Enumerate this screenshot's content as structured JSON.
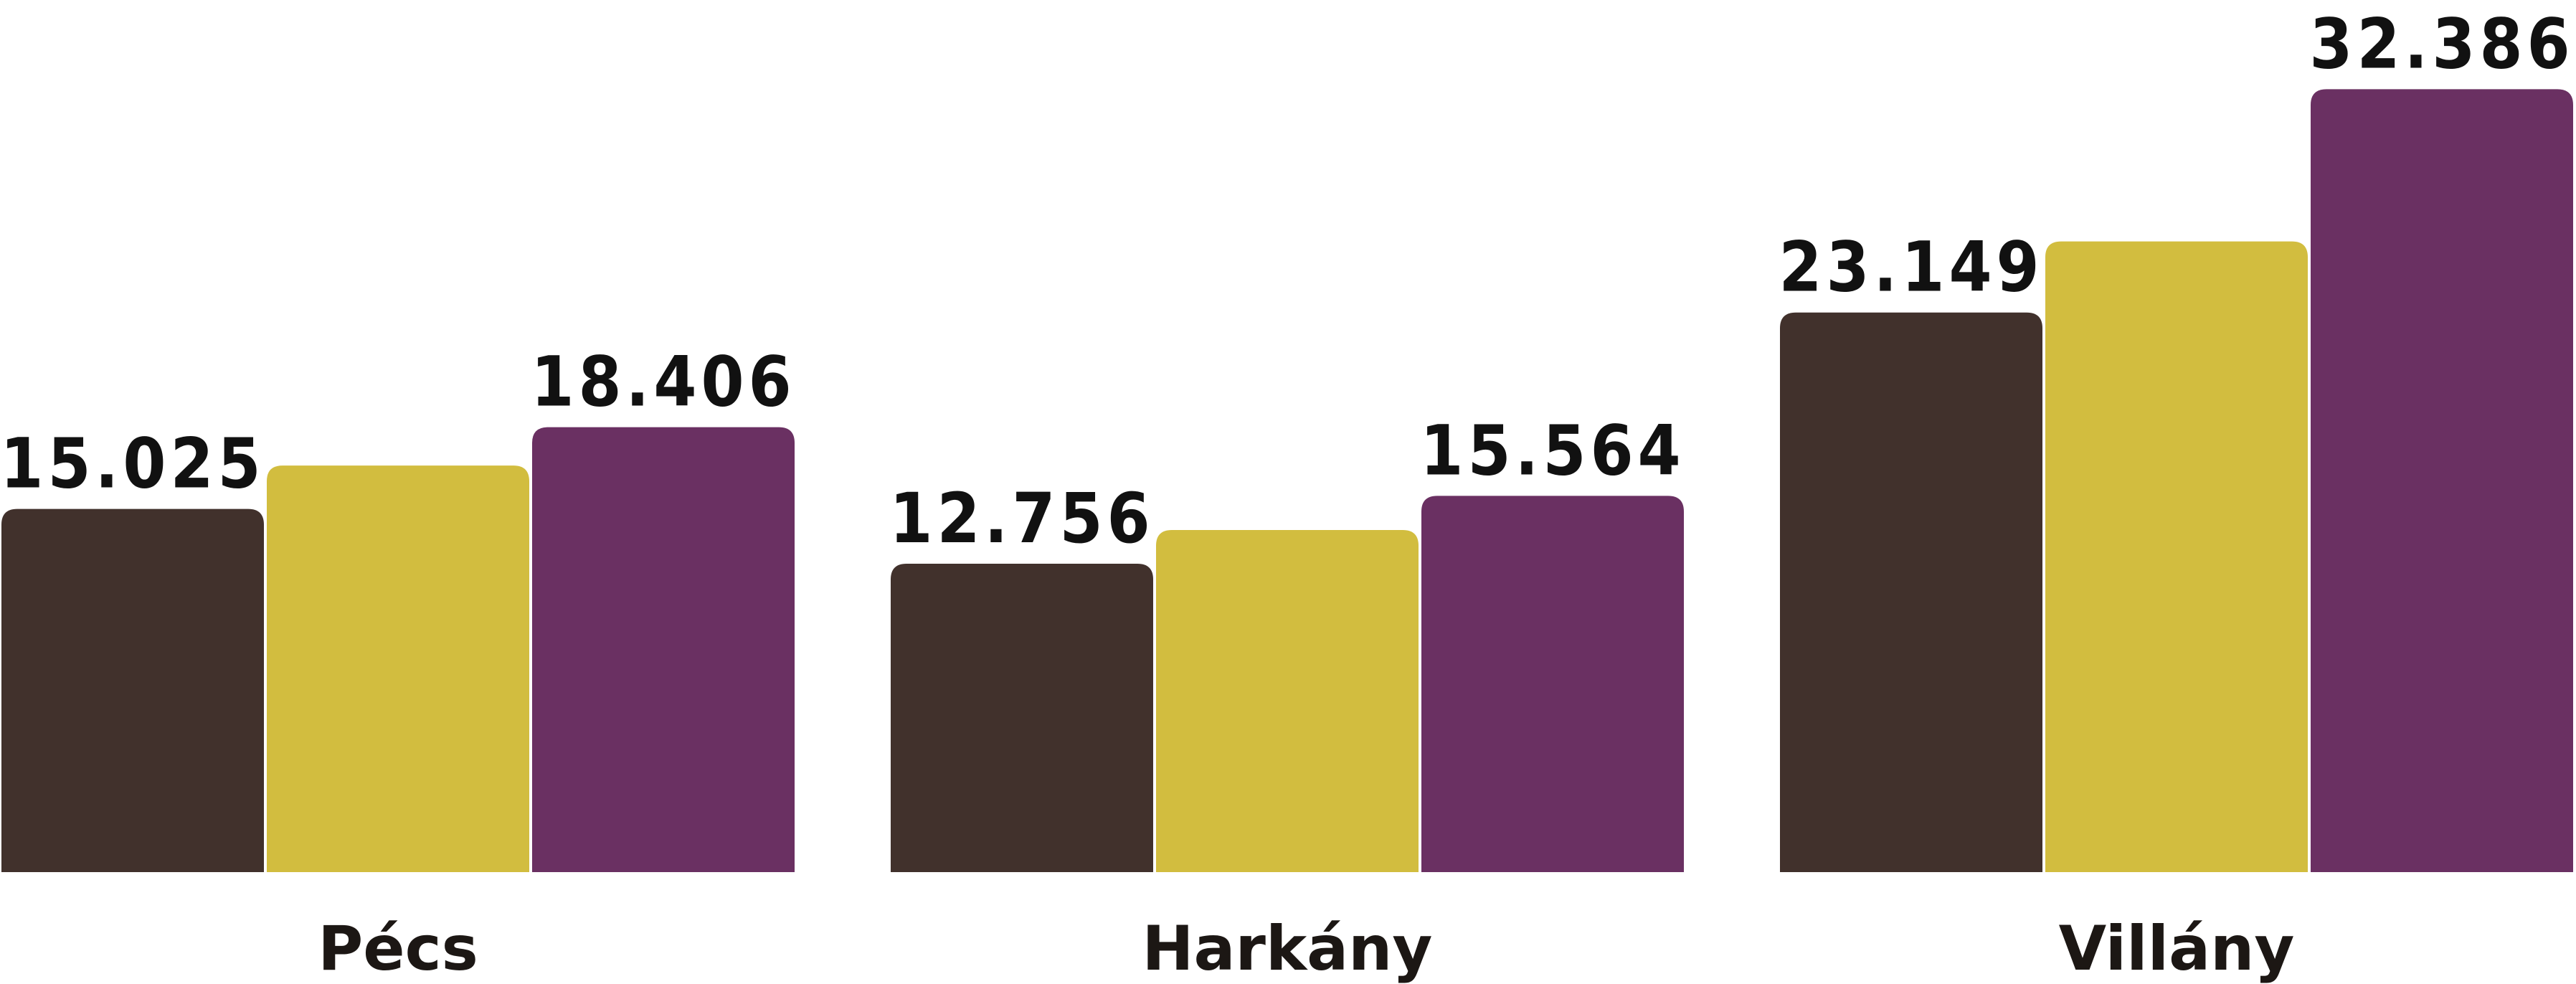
{
  "chart_data": {
    "type": "bar",
    "title": "",
    "xlabel": "",
    "ylabel": "",
    "categories": [
      "Pécs",
      "Harkány",
      "Villány"
    ],
    "series": [
      {
        "color": "#41312c",
        "values": [
          15025,
          12756,
          23149
        ],
        "labels": [
          "15.025",
          "12.756",
          "23.149"
        ]
      },
      {
        "color": "#d2bd3f",
        "values": [
          16820,
          14150,
          26090
        ],
        "labels": [
          "",
          "",
          ""
        ]
      },
      {
        "color": "#6a3062",
        "values": [
          18406,
          15564,
          32386
        ],
        "labels": [
          "18.406",
          "15.564",
          "32.386"
        ]
      }
    ],
    "ylim": [
      0,
      34000
    ],
    "grid": false,
    "legend": "none"
  }
}
